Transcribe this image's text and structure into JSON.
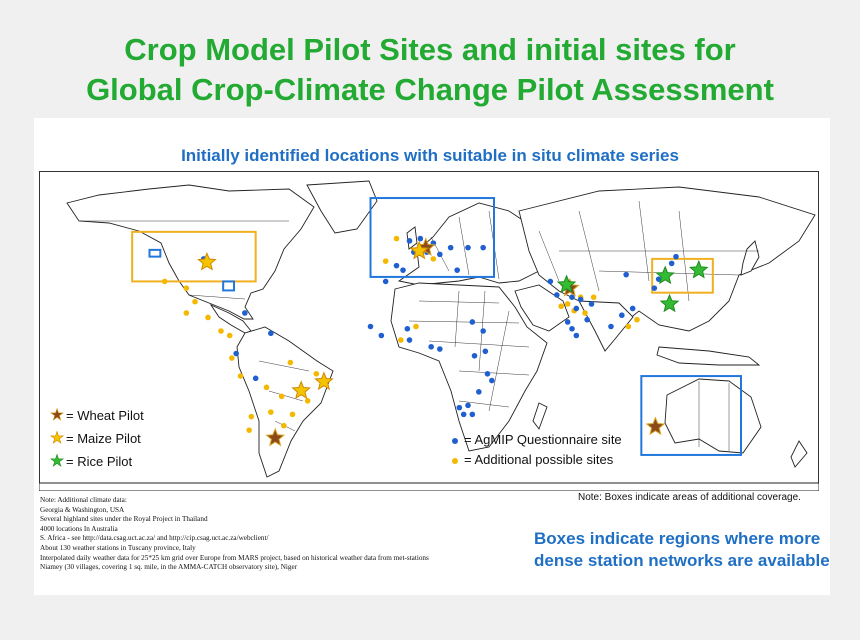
{
  "title": {
    "line1": "Crop Model Pilot Sites and initial sites for",
    "line2": "Global Crop-Climate Change Pilot Assessment"
  },
  "map_subtitle": "Initially identified locations with suitable in situ climate series",
  "colors": {
    "title": "#22aa33",
    "subtitle": "#1f6fc4",
    "agmip_site": "#1f5fd0",
    "additional_site": "#f5b800",
    "wheat_star": "#8a4a1a",
    "maize_star": "#f5c400",
    "rice_star": "#33bb33",
    "box_yellow": "#f0b020",
    "box_blue": "#2277dd"
  },
  "legend": {
    "wheat": {
      "label": "= Wheat Pilot",
      "icon": "wheat-star-icon"
    },
    "maize": {
      "label": "= Maize Pilot",
      "icon": "maize-star-icon"
    },
    "rice": {
      "label": "= Rice Pilot",
      "icon": "rice-star-icon"
    },
    "agmip": {
      "label": "= AgMIP Questionnaire site"
    },
    "additional": {
      "label": "= Additional possible sites"
    }
  },
  "box_note": "Note: Boxes indicate areas of additional coverage.",
  "notes": [
    "Note: Additional climate data:",
    "Georgia & Washington, USA",
    "Several highland sites under the Royal Project in Thailand",
    "4000 locations In Australia",
    "S. Africa - see http://data.csag.uct.ac.za/ and http://cip.csag.uct.ac.za/webclient/",
    "About 130 weather stations in Tuscany province, Italy",
    "Interpolated daily weather data for 25*25 km grid over Europe from MARS project, based on historical weather data from met-stations",
    "Niamey (30 villages, covering 1 sq. mile, in the AMMA-CATCH observatory site), Niger"
  ],
  "boxes_caption": "Boxes indicate regions where more dense station networks are available",
  "map": {
    "pilot_sites": [
      {
        "type": "wheat",
        "lon": 10.5,
        "lat": 48.0
      },
      {
        "type": "wheat",
        "lon": 77.0,
        "lat": 30.0
      },
      {
        "type": "wheat",
        "lon": 116.5,
        "lat": -31.5
      },
      {
        "type": "wheat",
        "lon": -59.0,
        "lat": -36.5
      },
      {
        "type": "maize",
        "lon": -90.5,
        "lat": 41.5
      },
      {
        "type": "maize",
        "lon": -47.0,
        "lat": -15.5
      },
      {
        "type": "maize",
        "lon": -36.5,
        "lat": -11.5
      },
      {
        "type": "maize",
        "lon": 7.5,
        "lat": 46.5
      },
      {
        "type": "rice",
        "lon": 75.5,
        "lat": 31.5
      },
      {
        "type": "rice",
        "lon": 121.0,
        "lat": 35.5
      },
      {
        "type": "rice",
        "lon": 136.5,
        "lat": 38.0
      },
      {
        "type": "rice",
        "lon": 123.0,
        "lat": 23.0
      }
    ],
    "agmip_sites": [
      [
        -92,
        43
      ],
      [
        -73,
        19
      ],
      [
        -61,
        10
      ],
      [
        -77,
        1
      ],
      [
        -68,
        -10
      ],
      [
        3,
        51
      ],
      [
        8,
        52
      ],
      [
        14,
        50
      ],
      [
        22,
        48
      ],
      [
        5,
        46
      ],
      [
        11,
        46
      ],
      [
        17,
        45
      ],
      [
        -3,
        40
      ],
      [
        0,
        38
      ],
      [
        25,
        38
      ],
      [
        30,
        48
      ],
      [
        37,
        48
      ],
      [
        -8,
        33
      ],
      [
        -15,
        13
      ],
      [
        -10,
        9
      ],
      [
        2,
        12
      ],
      [
        3,
        7
      ],
      [
        13,
        4
      ],
      [
        17,
        3
      ],
      [
        32,
        15
      ],
      [
        37,
        11
      ],
      [
        33,
        0
      ],
      [
        38,
        2
      ],
      [
        39,
        -8
      ],
      [
        35,
        -16
      ],
      [
        41,
        -11
      ],
      [
        26,
        -23
      ],
      [
        28,
        -26
      ],
      [
        30,
        -22
      ],
      [
        32,
        -26
      ],
      [
        68,
        33
      ],
      [
        71,
        27
      ],
      [
        78,
        26
      ],
      [
        80,
        21
      ],
      [
        82,
        25
      ],
      [
        76,
        15
      ],
      [
        78,
        12
      ],
      [
        80,
        9
      ],
      [
        85,
        16
      ],
      [
        87,
        23
      ],
      [
        101,
        18
      ],
      [
        106,
        21
      ],
      [
        116,
        30
      ],
      [
        118,
        34
      ],
      [
        124,
        41
      ],
      [
        126,
        44
      ],
      [
        103,
        36
      ],
      [
        96,
        13
      ]
    ],
    "additional_sites": [
      [
        -110,
        33
      ],
      [
        -100,
        30
      ],
      [
        -96,
        24
      ],
      [
        -100,
        19
      ],
      [
        -90,
        17
      ],
      [
        -84,
        11
      ],
      [
        -80,
        9
      ],
      [
        -79,
        -1
      ],
      [
        -75,
        -9
      ],
      [
        -63,
        -14
      ],
      [
        -56,
        -18
      ],
      [
        -51,
        -26
      ],
      [
        -55,
        -31
      ],
      [
        -61,
        -25
      ],
      [
        -71,
        -33
      ],
      [
        -70,
        -27
      ],
      [
        -52,
        -3
      ],
      [
        -40,
        -8
      ],
      [
        -44,
        -20
      ],
      [
        -3,
        52
      ],
      [
        -8,
        42
      ],
      [
        14,
        43
      ],
      [
        6,
        13
      ],
      [
        -1,
        7
      ],
      [
        82,
        26
      ],
      [
        88,
        26
      ],
      [
        76,
        23
      ],
      [
        73,
        22
      ],
      [
        79,
        20
      ],
      [
        84,
        19
      ],
      [
        104,
        13
      ],
      [
        108,
        16
      ]
    ],
    "yellow_boxes": [
      {
        "lon1": -125,
        "lat1": 55,
        "lon2": -68,
        "lat2": 33
      },
      {
        "lon1": 115,
        "lat1": 43,
        "lon2": 143,
        "lat2": 28
      }
    ],
    "blue_boxes": [
      {
        "lon1": -15,
        "lat1": 70,
        "lon2": 42,
        "lat2": 35
      },
      {
        "lon1": 110,
        "lat1": -9,
        "lon2": 156,
        "lat2": -44
      },
      {
        "lon1": -117,
        "lat1": 47,
        "lon2": -112,
        "lat2": 44
      },
      {
        "lon1": -83,
        "lat1": 33,
        "lon2": -78,
        "lat2": 29
      }
    ]
  }
}
